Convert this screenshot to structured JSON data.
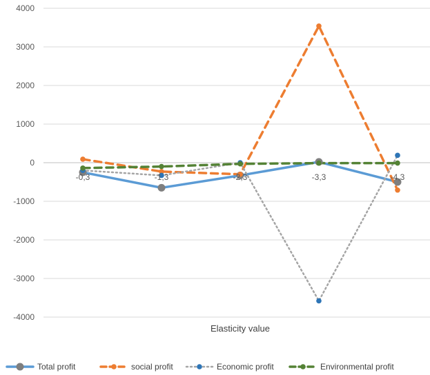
{
  "chart_data": {
    "type": "line",
    "title": "",
    "xlabel": "Elasticity value",
    "ylabel": "",
    "categories": [
      "-0,3",
      "-1,3",
      "-2,3",
      "-3,3",
      "-4,3"
    ],
    "ylim": [
      -4000,
      4000
    ],
    "yticks": [
      4000,
      3000,
      2000,
      1000,
      0,
      -1000,
      -2000,
      -3000,
      -4000
    ],
    "grid": true,
    "legend_position": "bottom",
    "series": [
      {
        "name": "Total profit",
        "values": [
          -250,
          -650,
          -330,
          20,
          -500
        ],
        "color": "#5b9bd5",
        "dash": "solid",
        "marker": "circle-large",
        "marker_color": "#7f7f7f"
      },
      {
        "name": "social profit",
        "values": [
          90,
          -230,
          -300,
          3540,
          -710
        ],
        "color": "#ed7d31",
        "dash": "dash",
        "marker": "circle",
        "marker_color": "#ed7d31"
      },
      {
        "name": "Economic profit",
        "values": [
          -200,
          -330,
          0,
          -3580,
          190
        ],
        "color": "#a5a5a5",
        "dash": "dot",
        "marker": "circle",
        "marker_color": "#2e75b6"
      },
      {
        "name": "Environmental profit",
        "values": [
          -140,
          -100,
          -30,
          -10,
          -10
        ],
        "color": "#548235",
        "dash": "dash",
        "marker": "circle",
        "marker_color": "#548235"
      }
    ]
  }
}
